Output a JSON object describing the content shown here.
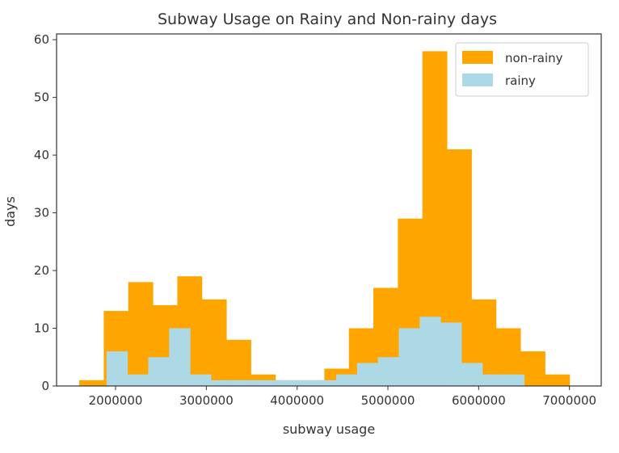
{
  "chart_data": {
    "type": "bar",
    "title": "Subway Usage on Rainy and Non-rainy days",
    "xlabel": "subway usage",
    "ylabel": "days",
    "xlim": [
      1350000,
      7350000
    ],
    "ylim": [
      0,
      61
    ],
    "grid": false,
    "legend_placement": "top-right",
    "x_ticks": [
      {
        "value": 2000000,
        "label": "2000000"
      },
      {
        "value": 3000000,
        "label": "3000000"
      },
      {
        "value": 4000000,
        "label": "4000000"
      },
      {
        "value": 5000000,
        "label": "5000000"
      },
      {
        "value": 6000000,
        "label": "6000000"
      },
      {
        "value": 7000000,
        "label": "7000000"
      }
    ],
    "y_ticks": [
      {
        "value": 0,
        "label": "0"
      },
      {
        "value": 10,
        "label": "10"
      },
      {
        "value": 20,
        "label": "20"
      },
      {
        "value": 30,
        "label": "30"
      },
      {
        "value": 40,
        "label": "40"
      },
      {
        "value": 50,
        "label": "50"
      },
      {
        "value": 60,
        "label": "60"
      }
    ],
    "series": [
      {
        "name": "non-rainy",
        "color": "#ffa500",
        "bin_edges": [
          1600000,
          1870000,
          2140000,
          2410000,
          2680000,
          2950000,
          3220000,
          3490000,
          3760000,
          4030000,
          4300000,
          4570000,
          4840000,
          5110000,
          5380000,
          5650000,
          5920000,
          6190000,
          6460000,
          6730000,
          7000000
        ],
        "values": [
          1,
          13,
          18,
          14,
          19,
          15,
          8,
          2,
          1,
          1,
          3,
          10,
          17,
          29,
          58,
          41,
          15,
          10,
          6,
          2
        ]
      },
      {
        "name": "rainy",
        "color": "#add8e6",
        "bin_edges": [
          1900000,
          2130000,
          2360000,
          2590000,
          2820000,
          3050000,
          3280000,
          3510000,
          3740000,
          3970000,
          4200000,
          4430000,
          4660000,
          4890000,
          5120000,
          5350000,
          5580000,
          5810000,
          6040000,
          6270000,
          6500000
        ],
        "values": [
          6,
          2,
          5,
          10,
          2,
          1,
          1,
          1,
          1,
          1,
          1,
          2,
          4,
          5,
          10,
          12,
          11,
          4,
          2,
          2
        ]
      }
    ]
  }
}
